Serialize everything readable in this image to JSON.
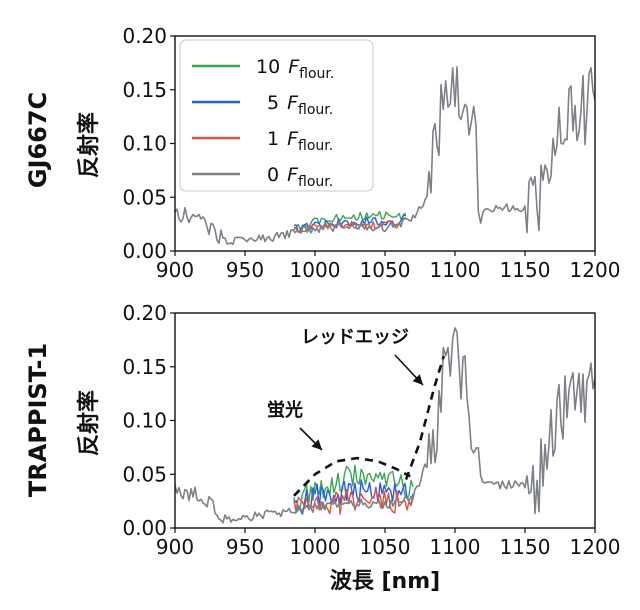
{
  "chart_data": [
    {
      "type": "line",
      "row_label": "GJ667C",
      "ylabel": "反射率",
      "xlim": [
        900,
        1200
      ],
      "ylim": [
        0.0,
        0.2
      ],
      "xticks": [
        "900",
        "950",
        "1000",
        "1050",
        "1100",
        "1150",
        "1200"
      ],
      "yticks": [
        "0.00",
        "0.05",
        "0.10",
        "0.15",
        "0.20"
      ],
      "legend": {
        "position": "upper-left",
        "entries": [
          {
            "num": "10",
            "var": "F",
            "sub": "flour.",
            "color": "#3aa655"
          },
          {
            "num": "5",
            "var": "F",
            "sub": "flour.",
            "color": "#2a5ee8"
          },
          {
            "num": "1",
            "var": "F",
            "sub": "flour.",
            "color": "#e0533d"
          },
          {
            "num": "0",
            "var": "F",
            "sub": "flour.",
            "color": "#7d8087"
          }
        ]
      },
      "series": [
        {
          "name": "10 F_flour.",
          "color": "#3aa655",
          "x": [
            985,
            1000,
            1020,
            1040,
            1060,
            1065
          ],
          "y": [
            0.022,
            0.027,
            0.031,
            0.033,
            0.032,
            0.035
          ]
        },
        {
          "name": "5 F_flour.",
          "color": "#2a5ee8",
          "x": [
            985,
            1000,
            1020,
            1040,
            1060,
            1065
          ],
          "y": [
            0.02,
            0.024,
            0.027,
            0.028,
            0.028,
            0.033
          ]
        },
        {
          "name": "1 F_flour.",
          "color": "#e0533d",
          "x": [
            985,
            1000,
            1020,
            1040,
            1060,
            1065
          ],
          "y": [
            0.019,
            0.022,
            0.024,
            0.024,
            0.025,
            0.031
          ]
        },
        {
          "name": "0 F_flour.",
          "color": "#7d8087",
          "x": [
            900,
            910,
            920,
            930,
            940,
            950,
            960,
            970,
            980,
            990,
            1000,
            1010,
            1020,
            1030,
            1040,
            1050,
            1060,
            1070,
            1080,
            1090,
            1095,
            1100,
            1110,
            1115,
            1120,
            1140,
            1150,
            1160,
            1170,
            1180,
            1190,
            1200
          ],
          "y": [
            0.035,
            0.032,
            0.03,
            0.014,
            0.008,
            0.01,
            0.012,
            0.013,
            0.015,
            0.019,
            0.021,
            0.022,
            0.023,
            0.023,
            0.022,
            0.022,
            0.024,
            0.03,
            0.05,
            0.13,
            0.14,
            0.16,
            0.12,
            0.09,
            0.04,
            0.04,
            0.04,
            0.05,
            0.1,
            0.12,
            0.13,
            0.14
          ]
        }
      ]
    },
    {
      "type": "line",
      "row_label": "TRAPPIST-1",
      "ylabel": "反射率",
      "xlabel": "波長 [nm]",
      "xlim": [
        900,
        1200
      ],
      "ylim": [
        0.0,
        0.2
      ],
      "xticks": [
        "900",
        "950",
        "1000",
        "1050",
        "1100",
        "1150",
        "1200"
      ],
      "yticks": [
        "0.00",
        "0.05",
        "0.10",
        "0.15",
        "0.20"
      ],
      "annotations": [
        {
          "text": "レッドエッジ",
          "dashed": {
            "x": [
              1065,
              1075,
              1085,
              1092
            ],
            "y": [
              0.045,
              0.08,
              0.13,
              0.16
            ]
          }
        },
        {
          "text": "蛍光",
          "dashed": {
            "x": [
              985,
              1000,
              1015,
              1030,
              1045,
              1058,
              1068
            ],
            "y": [
              0.03,
              0.05,
              0.062,
              0.065,
              0.062,
              0.055,
              0.048
            ]
          }
        }
      ],
      "series": [
        {
          "name": "10 F_flour.",
          "color": "#3aa655",
          "x": [
            985,
            1000,
            1015,
            1030,
            1045,
            1060,
            1070
          ],
          "y": [
            0.024,
            0.036,
            0.045,
            0.048,
            0.045,
            0.04,
            0.038
          ]
        },
        {
          "name": "5 F_flour.",
          "color": "#2a5ee8",
          "x": [
            985,
            1000,
            1015,
            1030,
            1045,
            1060,
            1070
          ],
          "y": [
            0.021,
            0.029,
            0.034,
            0.035,
            0.034,
            0.031,
            0.032
          ]
        },
        {
          "name": "1 F_flour.",
          "color": "#e0533d",
          "x": [
            985,
            1000,
            1015,
            1030,
            1045,
            1060,
            1070
          ],
          "y": [
            0.019,
            0.022,
            0.024,
            0.025,
            0.024,
            0.024,
            0.027
          ]
        },
        {
          "name": "0 F_flour.",
          "color": "#7d8087",
          "x": [
            900,
            910,
            920,
            930,
            940,
            950,
            960,
            970,
            980,
            990,
            1000,
            1010,
            1020,
            1030,
            1040,
            1050,
            1060,
            1070,
            1080,
            1090,
            1095,
            1100,
            1110,
            1115,
            1120,
            1140,
            1150,
            1160,
            1170,
            1180,
            1190,
            1200
          ],
          "y": [
            0.035,
            0.032,
            0.03,
            0.014,
            0.008,
            0.01,
            0.012,
            0.013,
            0.015,
            0.018,
            0.02,
            0.021,
            0.022,
            0.023,
            0.022,
            0.022,
            0.023,
            0.03,
            0.06,
            0.13,
            0.15,
            0.16,
            0.12,
            0.09,
            0.04,
            0.04,
            0.04,
            0.05,
            0.1,
            0.12,
            0.13,
            0.14
          ]
        }
      ]
    }
  ]
}
